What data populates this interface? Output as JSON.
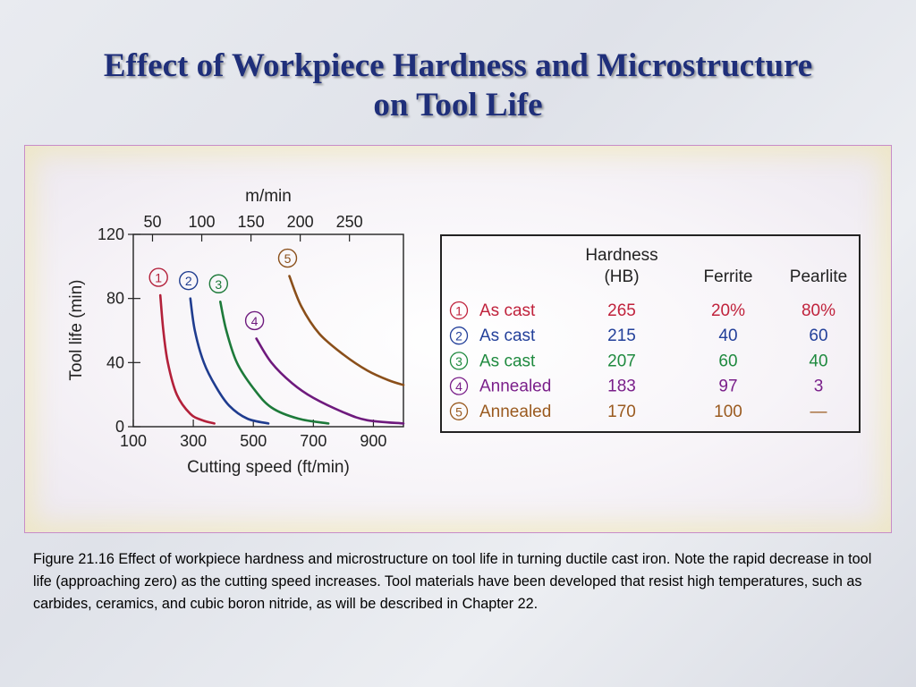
{
  "slide": {
    "title_line1": "Effect of Workpiece Hardness and Microstructure",
    "title_line2": "on Tool Life",
    "caption": "Figure 21.16  Effect of workpiece hardness and microstructure on tool life in turning ductile cast iron.  Note the rapid decrease in tool life (approaching zero) as the cutting speed increases.  Tool materials have been developed that resist high temperatures, such as carbides, ceramics, and cubic boron nitride, as will be described in Chapter 22."
  },
  "chart_data": {
    "type": "line",
    "xlabel": "Cutting speed (ft/min)",
    "xlabel_top": "m/min",
    "ylabel": "Tool life (min)",
    "xlim": [
      100,
      1000
    ],
    "ylim": [
      0,
      120
    ],
    "x_ticks": [
      100,
      300,
      500,
      700,
      900
    ],
    "x_ticks_top": [
      50,
      100,
      150,
      200,
      250
    ],
    "y_ticks": [
      0,
      40,
      80,
      120
    ],
    "grid": false,
    "series": [
      {
        "marker": "1",
        "color": "#b3203a",
        "points": [
          [
            190,
            82
          ],
          [
            200,
            60
          ],
          [
            215,
            40
          ],
          [
            245,
            20
          ],
          [
            290,
            8
          ],
          [
            330,
            4
          ],
          [
            370,
            2
          ]
        ]
      },
      {
        "marker": "2",
        "color": "#1f3c8f",
        "points": [
          [
            290,
            80
          ],
          [
            305,
            60
          ],
          [
            335,
            40
          ],
          [
            375,
            25
          ],
          [
            420,
            13
          ],
          [
            480,
            5
          ],
          [
            550,
            2
          ]
        ]
      },
      {
        "marker": "3",
        "color": "#1d7a3a",
        "points": [
          [
            390,
            78
          ],
          [
            410,
            60
          ],
          [
            445,
            40
          ],
          [
            500,
            24
          ],
          [
            560,
            12
          ],
          [
            650,
            5
          ],
          [
            750,
            2
          ]
        ]
      },
      {
        "marker": "4",
        "color": "#6e1a7d",
        "points": [
          [
            510,
            55
          ],
          [
            560,
            40
          ],
          [
            630,
            27
          ],
          [
            700,
            18
          ],
          [
            800,
            9
          ],
          [
            880,
            4
          ],
          [
            1000,
            2
          ]
        ]
      },
      {
        "marker": "5",
        "color": "#8a4f1a",
        "points": [
          [
            620,
            94
          ],
          [
            660,
            75
          ],
          [
            720,
            58
          ],
          [
            800,
            45
          ],
          [
            880,
            35
          ],
          [
            950,
            29
          ],
          [
            1000,
            26
          ]
        ]
      }
    ]
  },
  "legend_table": {
    "headers": {
      "hardness_line1": "Hardness",
      "hardness_line2": "(HB)",
      "ferrite": "Ferrite",
      "pearlite": "Pearlite"
    },
    "rows": [
      {
        "num": "1",
        "condition": "As cast",
        "hardness": "265",
        "ferrite": "20%",
        "pearlite": "80%",
        "color": "#c0223c"
      },
      {
        "num": "2",
        "condition": "As cast",
        "hardness": "215",
        "ferrite": "40",
        "pearlite": "60",
        "color": "#23409a"
      },
      {
        "num": "3",
        "condition": "As cast",
        "hardness": "207",
        "ferrite": "60",
        "pearlite": "40",
        "color": "#1f8a3f"
      },
      {
        "num": "4",
        "condition": "Annealed",
        "hardness": "183",
        "ferrite": "97",
        "pearlite": "3",
        "color": "#7a1f8a"
      },
      {
        "num": "5",
        "condition": "Annealed",
        "hardness": "170",
        "ferrite": "100",
        "pearlite": "—",
        "color": "#9a5a1f"
      }
    ]
  }
}
